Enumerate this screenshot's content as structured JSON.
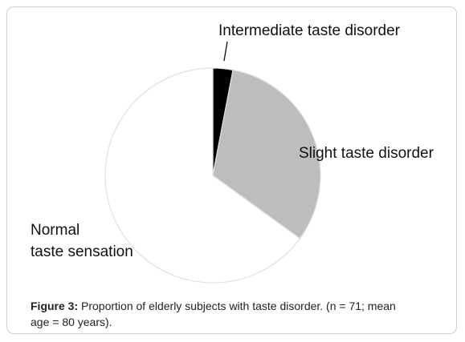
{
  "chart_data": {
    "type": "pie",
    "slices": [
      {
        "label": "Intermediate taste disorder",
        "value": 3,
        "color": "#000000"
      },
      {
        "label": "Slight taste disorder",
        "value": 32,
        "color": "#bdbdbd"
      },
      {
        "label": "Normal\ntaste sensation",
        "value": 65,
        "color": "#ffffff"
      }
    ],
    "legend": "none",
    "labels": {
      "intermediate": "Intermediate taste disorder",
      "slight": "Slight taste disorder",
      "normal_line1": "Normal",
      "normal_line2": "taste sensation"
    }
  },
  "caption": {
    "prefix": "Figure 3:",
    "text_line1": " Proportion of elderly subjects with taste disorder.  (n = 71; mean",
    "text_line2": "age = 80 years)."
  }
}
